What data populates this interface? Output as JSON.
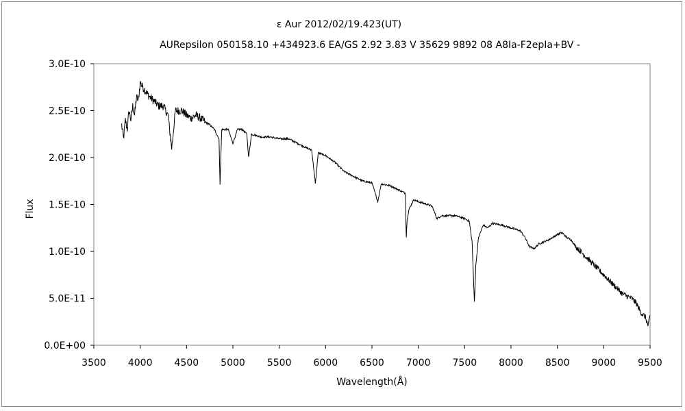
{
  "chart_data": {
    "type": "line",
    "title": "ε Aur   2012/02/19.423(UT)",
    "subtitle": "AURepsilon 050158.10 +434923.6 EA/GS 2.92 3.83 V 35629 9892 08 A8Ia-F2epIa+BV -",
    "xlabel": "Wavelength(Å)",
    "ylabel": "Flux",
    "xlim": [
      3500,
      9500
    ],
    "ylim": [
      0,
      3e-10
    ],
    "xticks": [
      3500,
      4000,
      4500,
      5000,
      5500,
      6000,
      6500,
      7000,
      7500,
      8000,
      8500,
      9000,
      9500
    ],
    "xtick_labels": [
      "3500",
      "4000",
      "4500",
      "5000",
      "5500",
      "6000",
      "6500",
      "7000",
      "7500",
      "8000",
      "8500",
      "9000",
      "9500"
    ],
    "yticks": [
      0,
      5e-11,
      1e-10,
      1.5e-10,
      2e-10,
      2.5e-10,
      3e-10
    ],
    "ytick_labels": [
      "0.0E+00",
      "5.0E-11",
      "1.0E-10",
      "1.5E-10",
      "2.0E-10",
      "2.5E-10",
      "3.0E-10"
    ],
    "grid": false,
    "legend": "none",
    "series": [
      {
        "color": "#000000",
        "x": [
          3800,
          3820,
          3840,
          3860,
          3880,
          3900,
          3920,
          3940,
          3960,
          3980,
          4000,
          4030,
          4060,
          4100,
          4150,
          4200,
          4250,
          4300,
          4340,
          4380,
          4450,
          4500,
          4550,
          4600,
          4650,
          4700,
          4750,
          4800,
          4850,
          4861,
          4880,
          4950,
          5000,
          5050,
          5100,
          5150,
          5170,
          5200,
          5300,
          5400,
          5500,
          5600,
          5700,
          5800,
          5850,
          5890,
          5920,
          6000,
          6100,
          6200,
          6300,
          6400,
          6500,
          6563,
          6600,
          6700,
          6800,
          6860,
          6870,
          6880,
          6900,
          6950,
          7000,
          7100,
          7150,
          7200,
          7250,
          7300,
          7400,
          7500,
          7550,
          7580,
          7605,
          7620,
          7650,
          7700,
          7750,
          7800,
          7900,
          8000,
          8100,
          8150,
          8200,
          8250,
          8300,
          8400,
          8450,
          8500,
          8550,
          8600,
          8650,
          8700,
          8800,
          8900,
          9000,
          9100,
          9200,
          9300,
          9350,
          9400,
          9450,
          9480,
          9500
        ],
        "y": [
          2.35e-10,
          2.2e-10,
          2.4e-10,
          2.3e-10,
          2.5e-10,
          2.4e-10,
          2.55e-10,
          2.45e-10,
          2.65e-10,
          2.6e-10,
          2.8e-10,
          2.75e-10,
          2.7e-10,
          2.65e-10,
          2.6e-10,
          2.55e-10,
          2.55e-10,
          2.45e-10,
          2.1e-10,
          2.5e-10,
          2.5e-10,
          2.45e-10,
          2.42e-10,
          2.45e-10,
          2.42e-10,
          2.38e-10,
          2.35e-10,
          2.3e-10,
          2.2e-10,
          1.72e-10,
          2.3e-10,
          2.3e-10,
          2.15e-10,
          2.3e-10,
          2.3e-10,
          2.25e-10,
          2e-10,
          2.25e-10,
          2.22e-10,
          2.22e-10,
          2.2e-10,
          2.2e-10,
          2.15e-10,
          2.1e-10,
          2.08e-10,
          1.72e-10,
          2.05e-10,
          2.02e-10,
          1.95e-10,
          1.85e-10,
          1.8e-10,
          1.75e-10,
          1.73e-10,
          1.53e-10,
          1.72e-10,
          1.7e-10,
          1.65e-10,
          1.62e-10,
          1.15e-10,
          1.35e-10,
          1.45e-10,
          1.55e-10,
          1.53e-10,
          1.5e-10,
          1.48e-10,
          1.35e-10,
          1.38e-10,
          1.38e-10,
          1.38e-10,
          1.35e-10,
          1.32e-10,
          1.1e-10,
          4.6e-11,
          8.5e-11,
          1.15e-10,
          1.28e-10,
          1.25e-10,
          1.3e-10,
          1.28e-10,
          1.25e-10,
          1.22e-10,
          1.15e-10,
          1.05e-10,
          1.03e-10,
          1.08e-10,
          1.12e-10,
          1.15e-10,
          1.18e-10,
          1.2e-10,
          1.15e-10,
          1.12e-10,
          1.05e-10,
          9.5e-11,
          8.5e-11,
          7.5e-11,
          6.5e-11,
          5.5e-11,
          5e-11,
          4.5e-11,
          3.5e-11,
          3e-11,
          2e-11,
          3.2e-11
        ]
      }
    ]
  }
}
